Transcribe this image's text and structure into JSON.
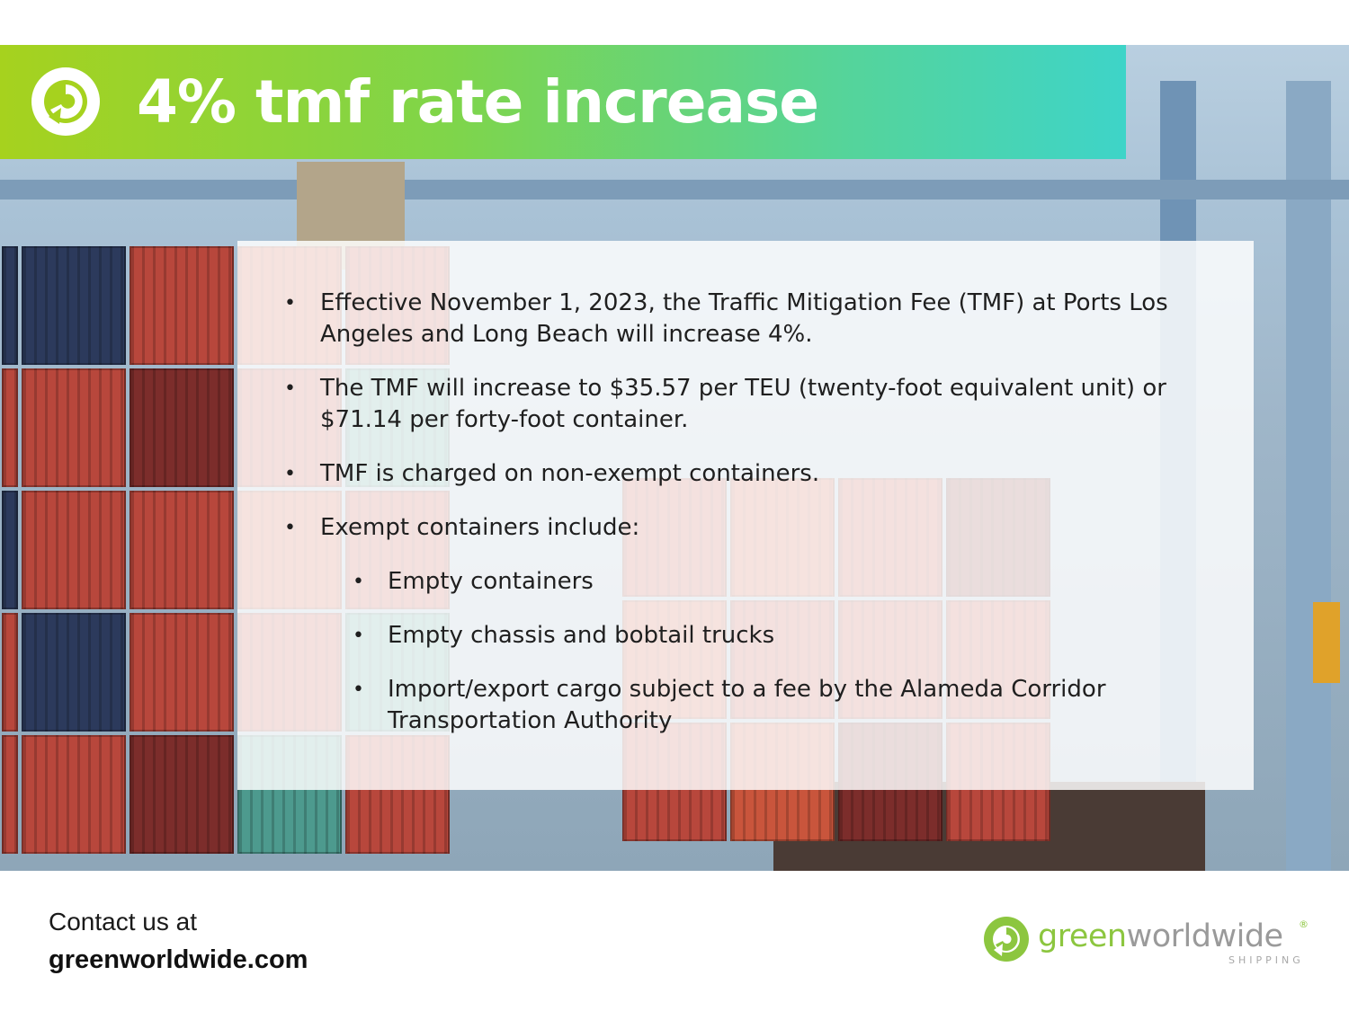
{
  "header": {
    "title": "4% tmf rate increase"
  },
  "bullets": [
    {
      "level": 1,
      "text": "Effective November 1, 2023, the Traffic Mitigation Fee (TMF) at Ports Los Angeles and Long Beach will increase 4%."
    },
    {
      "level": 1,
      "text": "The TMF will increase to $35.57 per TEU (twenty-foot equivalent unit) or $71.14 per forty-foot container."
    },
    {
      "level": 1,
      "text": "TMF is charged on non-exempt containers."
    },
    {
      "level": 1,
      "text": "Exempt containers include:"
    },
    {
      "level": 2,
      "text": "Empty containers"
    },
    {
      "level": 2,
      "text": "Empty chassis and bobtail trucks"
    },
    {
      "level": 2,
      "text": "Import/export cargo subject to a fee by the Alameda Corridor Transportation Authority"
    }
  ],
  "bullet_glyph": "•",
  "footer": {
    "contact_label": "Contact us at",
    "contact_url": "greenworldwide.com",
    "brand_green": "green",
    "brand_rest": "worldwide",
    "brand_registered": "®",
    "brand_sub": "SHIPPING"
  },
  "colors": {
    "accent_green": "#8cc63f",
    "banner_start": "#a6d21e",
    "banner_end": "#3ed4c8"
  }
}
